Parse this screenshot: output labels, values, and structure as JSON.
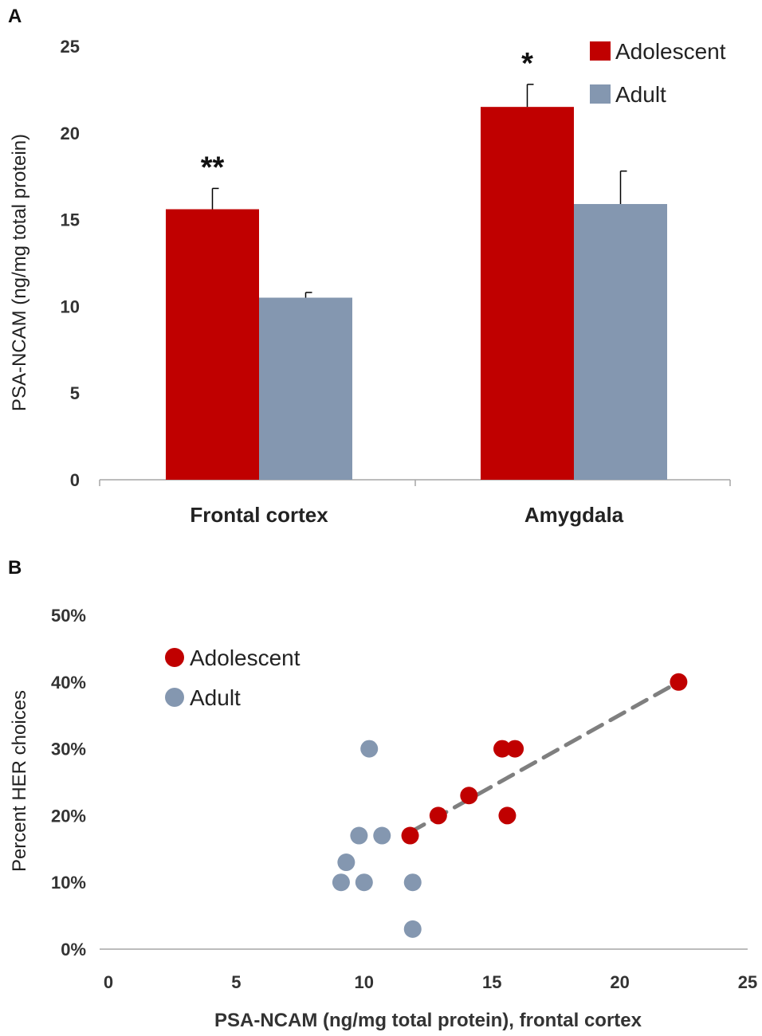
{
  "colors": {
    "adolescent": "#c00000",
    "adult": "#8497b0",
    "axis": "#a6a6a6",
    "fit": "#7f7f7f"
  },
  "chart_data": [
    {
      "panel": "A",
      "type": "bar",
      "categories": [
        "Frontal cortex",
        "Amygdala"
      ],
      "series": [
        {
          "name": "Adolescent",
          "values": [
            15.6,
            21.5
          ],
          "errors": [
            1.2,
            1.3
          ]
        },
        {
          "name": "Adult",
          "values": [
            10.5,
            15.9
          ],
          "errors": [
            0.3,
            1.9
          ]
        }
      ],
      "significance": [
        "**",
        "*"
      ],
      "ylabel": "PSA-NCAM (ng/mg total protein)",
      "yticks": [
        "0",
        "5",
        "10",
        "15",
        "20",
        "25"
      ],
      "ylim": [
        0,
        25
      ],
      "legend": "top-right"
    },
    {
      "panel": "B",
      "type": "scatter",
      "series": [
        {
          "name": "Adolescent",
          "x": [
            11.8,
            12.9,
            14.1,
            15.4,
            15.9,
            15.6,
            22.3
          ],
          "y": [
            17,
            20,
            23,
            30,
            30,
            20,
            40
          ]
        },
        {
          "name": "Adult",
          "x": [
            9.1,
            9.3,
            9.8,
            10.0,
            10.2,
            10.7,
            11.9,
            11.9
          ],
          "y": [
            10,
            13,
            17,
            10,
            30,
            17,
            10,
            3
          ]
        }
      ],
      "trendline": {
        "series": "Adolescent",
        "x": [
          11.8,
          22.3
        ],
        "y": [
          17.5,
          40
        ],
        "style": "dashed"
      },
      "xlabel": "PSA-NCAM (ng/mg total protein), frontal cortex",
      "ylabel": "Percent HER choices",
      "xticks": [
        "0",
        "5",
        "10",
        "15",
        "20",
        "25"
      ],
      "yticks": [
        "0%",
        "10%",
        "20%",
        "30%",
        "40%",
        "50%"
      ],
      "xlim": [
        0,
        25
      ],
      "ylim": [
        0,
        50
      ],
      "legend": "top-left"
    }
  ]
}
